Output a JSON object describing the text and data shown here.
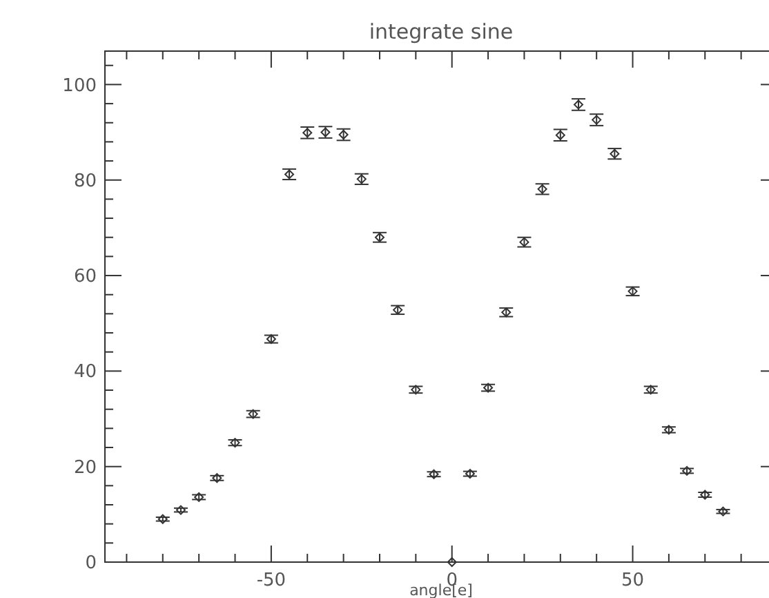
{
  "chart_data": {
    "type": "scatter",
    "title": "integrate sine",
    "xlabel": "angle[e]",
    "x": [
      -80,
      -75,
      -70,
      -65,
      -60,
      -55,
      -50,
      -45,
      -40,
      -35,
      -30,
      -25,
      -20,
      -15,
      -10,
      -5,
      0,
      5,
      10,
      15,
      20,
      25,
      30,
      35,
      40,
      45,
      50,
      55,
      60,
      65,
      70,
      75
    ],
    "values": [
      9.0,
      10.9,
      13.6,
      17.6,
      25.0,
      31.0,
      46.7,
      81.2,
      89.9,
      90.0,
      89.5,
      80.2,
      68.0,
      52.8,
      36.1,
      18.4,
      0,
      18.5,
      36.5,
      52.3,
      67.0,
      78.1,
      89.4,
      95.8,
      92.6,
      85.5,
      56.7,
      36.1,
      27.7,
      19.1,
      14.1,
      10.6
    ],
    "errors": [
      0.4,
      0.4,
      0.5,
      0.5,
      0.6,
      0.7,
      0.8,
      1.1,
      1.2,
      1.2,
      1.2,
      1.1,
      1.0,
      0.9,
      0.7,
      0.5,
      null,
      0.5,
      0.7,
      0.9,
      1.0,
      1.1,
      1.2,
      1.2,
      1.2,
      1.1,
      0.9,
      0.7,
      0.6,
      0.5,
      0.5,
      0.4
    ],
    "color": "#333333",
    "marker": "diamond",
    "xlim": [
      -96,
      90
    ],
    "xticks": [
      {
        "value": -90,
        "label": null
      },
      {
        "value": -80,
        "label": null
      },
      {
        "value": -70,
        "label": null
      },
      {
        "value": -60,
        "label": null
      },
      -50,
      {
        "value": -40,
        "label": null
      },
      {
        "value": -30,
        "label": null
      },
      {
        "value": -20,
        "label": null
      },
      {
        "value": -10,
        "label": null
      },
      0,
      {
        "value": 10,
        "label": null
      },
      {
        "value": 20,
        "label": null
      },
      {
        "value": 30,
        "label": null
      },
      {
        "value": 40,
        "label": null
      },
      50,
      {
        "value": 60,
        "label": null
      },
      {
        "value": 70,
        "label": null
      },
      {
        "value": 80,
        "label": null
      }
    ],
    "ylim": [
      0,
      107
    ],
    "yticks": [
      0,
      {
        "value": 4,
        "label": null
      },
      {
        "value": 8,
        "label": null
      },
      {
        "value": 12,
        "label": null
      },
      {
        "value": 16,
        "label": null
      },
      20,
      {
        "value": 24,
        "label": null
      },
      {
        "value": 28,
        "label": null
      },
      {
        "value": 32,
        "label": null
      },
      {
        "value": 36,
        "label": null
      },
      40,
      {
        "value": 44,
        "label": null
      },
      {
        "value": 48,
        "label": null
      },
      {
        "value": 52,
        "label": null
      },
      {
        "value": 56,
        "label": null
      },
      60,
      {
        "value": 64,
        "label": null
      },
      {
        "value": 68,
        "label": null
      },
      {
        "value": 72,
        "label": null
      },
      {
        "value": 76,
        "label": null
      },
      80,
      {
        "value": 84,
        "label": null
      },
      {
        "value": 88,
        "label": null
      },
      {
        "value": 92,
        "label": null
      },
      {
        "value": 96,
        "label": null
      },
      100,
      {
        "value": 104,
        "label": null
      }
    ],
    "grid": false
  }
}
